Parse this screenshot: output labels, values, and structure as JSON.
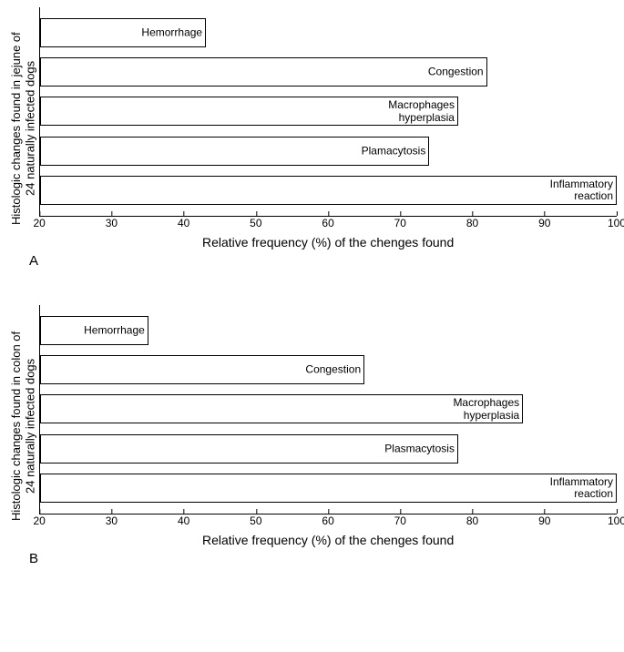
{
  "global": {
    "xlabel": "Relative frequency (%) of the chenges found",
    "xlim": [
      20,
      100
    ],
    "xtick_step": 10,
    "xticks": [
      20,
      30,
      40,
      50,
      60,
      70,
      80,
      90,
      100
    ],
    "bar_fill": "#ffffff",
    "bar_border": "#000000",
    "axis_color": "#000000",
    "background_color": "#ffffff",
    "label_fontsize": 12,
    "axis_label_fontsize": 14,
    "font_family": "Arial"
  },
  "panels": [
    {
      "letter": "A",
      "ylabel": "Histologic changes found in jejune of\n24 naturally infected dogs",
      "type": "bar-horizontal",
      "bars": [
        {
          "label": "Hemorrhage",
          "value": 43
        },
        {
          "label": "Congestion",
          "value": 82
        },
        {
          "label": "Macrophages\nhyperplasia",
          "value": 78
        },
        {
          "label": "Plamacytosis",
          "value": 74
        },
        {
          "label": "Inflammatory reaction",
          "value": 100
        }
      ]
    },
    {
      "letter": "B",
      "ylabel": "Histologic changes found in colon of\n24 naturally infected dogs",
      "type": "bar-horizontal",
      "bars": [
        {
          "label": "Hemorrhage",
          "value": 35
        },
        {
          "label": "Congestion",
          "value": 65
        },
        {
          "label": "Macrophages\nhyperplasia",
          "value": 87
        },
        {
          "label": "Plasmacytosis",
          "value": 78
        },
        {
          "label": "Inflammatory reaction",
          "value": 100
        }
      ]
    }
  ]
}
